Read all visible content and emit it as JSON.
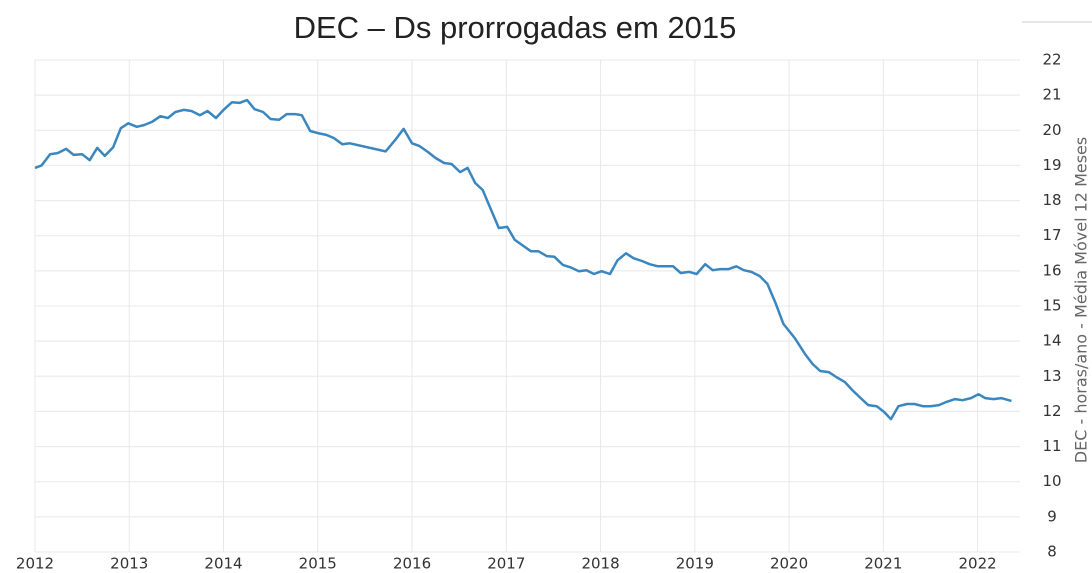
{
  "chart_data": {
    "type": "line",
    "title": "DEC – Ds prorrogadas em 2015",
    "y_axis_label": "DEC - horas/ano - Média Móvel 12 Meses",
    "x": [
      2012.0,
      2012.07,
      2012.16,
      2012.24,
      2012.33,
      2012.41,
      2012.5,
      2012.58,
      2012.66,
      2012.74,
      2012.83,
      2012.91,
      2012.99,
      2013.08,
      2013.16,
      2013.24,
      2013.33,
      2013.41,
      2013.49,
      2013.58,
      2013.66,
      2013.75,
      2013.83,
      2013.92,
      2014.0,
      2014.09,
      2014.17,
      2014.25,
      2014.33,
      2014.42,
      2014.5,
      2014.59,
      2014.67,
      2014.76,
      2014.83,
      2014.92,
      2015.0,
      2015.09,
      2015.17,
      2015.26,
      2015.34,
      2015.72,
      2015.82,
      2015.91,
      2016.0,
      2016.08,
      2016.17,
      2016.25,
      2016.34,
      2016.42,
      2016.51,
      2016.59,
      2016.67,
      2016.75,
      2016.84,
      2016.92,
      2017.01,
      2017.09,
      2017.18,
      2017.26,
      2017.34,
      2017.43,
      2017.51,
      2017.6,
      2017.68,
      2017.77,
      2017.85,
      2017.93,
      2018.01,
      2018.1,
      2018.18,
      2018.27,
      2018.35,
      2018.44,
      2018.52,
      2018.61,
      2018.69,
      2018.77,
      2018.85,
      2018.94,
      2019.02,
      2019.11,
      2019.19,
      2019.27,
      2019.36,
      2019.44,
      2019.52,
      2019.6,
      2019.69,
      2019.77,
      2019.86,
      2019.94,
      2020.06,
      2020.17,
      2020.25,
      2020.33,
      2020.42,
      2020.5,
      2020.59,
      2020.67,
      2020.76,
      2020.84,
      2020.93,
      2021.01,
      2021.08,
      2021.16,
      2021.25,
      2021.33,
      2021.42,
      2021.5,
      2021.59,
      2021.67,
      2021.76,
      2021.84,
      2021.93,
      2022.01,
      2022.08,
      2022.17,
      2022.25,
      2022.36
    ],
    "series": [
      {
        "name": "DEC",
        "color": "#3a87bf",
        "values": [
          18.93,
          19.0,
          19.32,
          19.35,
          19.47,
          19.3,
          19.32,
          19.15,
          19.5,
          19.27,
          19.52,
          20.06,
          20.2,
          20.1,
          20.15,
          20.24,
          20.4,
          20.35,
          20.52,
          20.58,
          20.55,
          20.43,
          20.55,
          20.35,
          20.58,
          20.8,
          20.78,
          20.86,
          20.6,
          20.52,
          20.32,
          20.3,
          20.46,
          20.46,
          20.43,
          19.98,
          19.92,
          19.87,
          19.78,
          19.6,
          19.63,
          19.4,
          19.72,
          20.04,
          19.63,
          19.55,
          19.38,
          19.21,
          19.07,
          19.04,
          18.81,
          18.93,
          18.5,
          18.3,
          17.73,
          17.22,
          17.25,
          16.88,
          16.71,
          16.56,
          16.56,
          16.42,
          16.4,
          16.17,
          16.1,
          15.99,
          16.02,
          15.91,
          15.99,
          15.91,
          16.3,
          16.5,
          16.36,
          16.28,
          16.19,
          16.13,
          16.13,
          16.13,
          15.94,
          15.97,
          15.91,
          16.19,
          16.02,
          16.05,
          16.05,
          16.13,
          16.02,
          15.97,
          15.85,
          15.63,
          15.06,
          14.49,
          14.09,
          13.63,
          13.35,
          13.15,
          13.12,
          12.98,
          12.84,
          12.61,
          12.38,
          12.18,
          12.15,
          11.98,
          11.78,
          12.15,
          12.21,
          12.21,
          12.15,
          12.15,
          12.18,
          12.27,
          12.35,
          12.32,
          12.38,
          12.49,
          12.38,
          12.35,
          12.38,
          12.3
        ]
      }
    ],
    "xlim": [
      2012,
      2022.45
    ],
    "xticks": [
      2012,
      2013,
      2014,
      2015,
      2016,
      2017,
      2018,
      2019,
      2020,
      2021,
      2022
    ],
    "ylim": [
      8,
      22
    ],
    "yticks": [
      8,
      9,
      10,
      11,
      12,
      13,
      14,
      15,
      16,
      17,
      18,
      19,
      20,
      21,
      22
    ],
    "y_axis_side": "right",
    "grid": true
  }
}
